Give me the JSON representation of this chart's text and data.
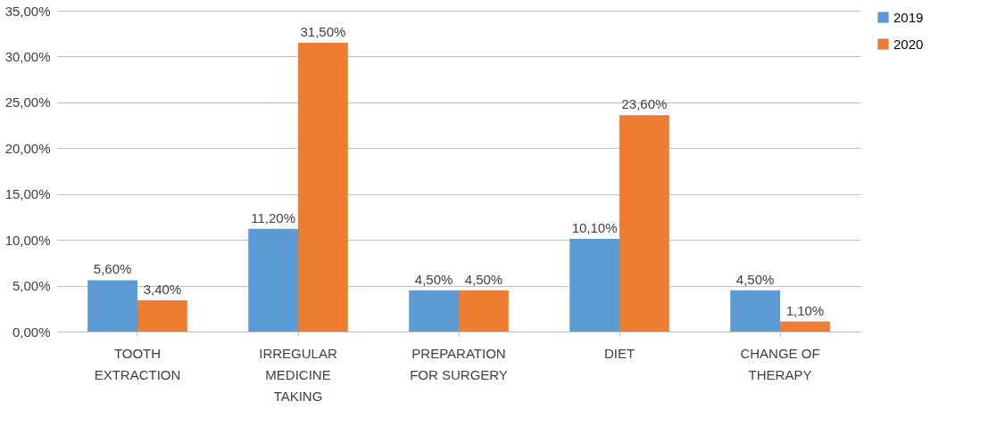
{
  "chart_data": {
    "type": "bar",
    "categories": [
      "TOOTH EXTRACTION",
      "IRREGULAR MEDICINE TAKING",
      "PREPARATION FOR SURGERY",
      "DIET",
      "CHANGE OF THERAPY"
    ],
    "series": [
      {
        "name": "2019",
        "color": "#5b9bd5",
        "values": [
          5.6,
          11.2,
          4.5,
          10.1,
          4.5
        ],
        "value_labels": [
          "5,60%",
          "11,20%",
          "4,50%",
          "10,10%",
          "4,50%"
        ]
      },
      {
        "name": "2020",
        "color": "#ed7d31",
        "values": [
          3.4,
          31.5,
          4.5,
          23.6,
          1.1
        ],
        "value_labels": [
          "3,40%",
          "31,50%",
          "4,50%",
          "23,60%",
          "1,10%"
        ]
      }
    ],
    "ylim": [
      0,
      35
    ],
    "yticks": [
      {
        "value": 0,
        "label": "0,00%"
      },
      {
        "value": 5,
        "label": "5,00%"
      },
      {
        "value": 10,
        "label": "10,00%"
      },
      {
        "value": 15,
        "label": "15,00%"
      },
      {
        "value": 20,
        "label": "20,00%"
      },
      {
        "value": 25,
        "label": "25,00%"
      },
      {
        "value": 30,
        "label": "30,00%"
      },
      {
        "value": 35,
        "label": "35,00%"
      }
    ],
    "grid": "y",
    "legend": "right"
  }
}
